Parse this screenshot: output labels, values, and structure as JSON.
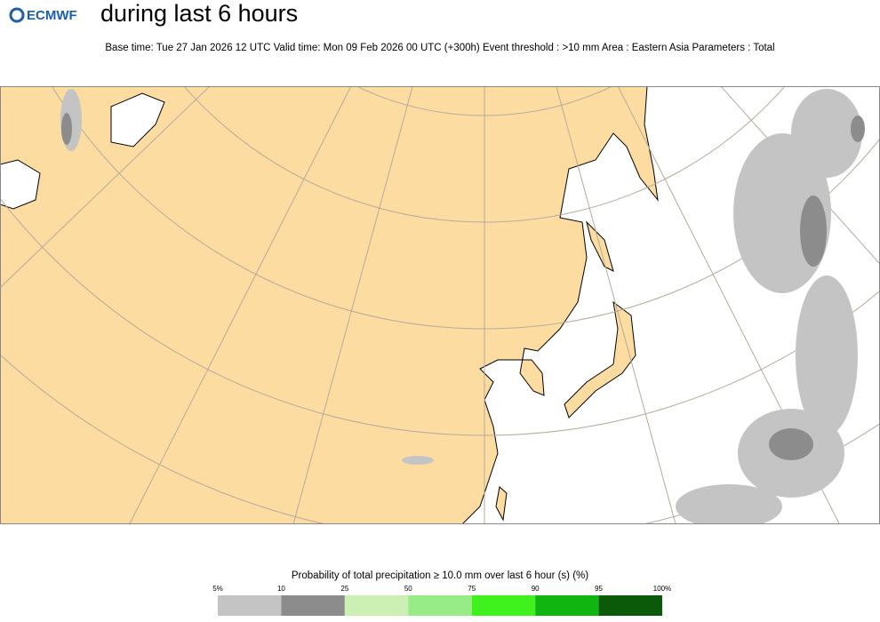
{
  "logo": "ECMWF",
  "title": "during last 6 hours",
  "subtitle": "Base time: Tue 27 Jan 2026 12 UTC Valid time: Mon 09 Feb 2026 00 UTC (+300h) Event threshold : >10 mm Area : Eastern Asia Parameters : Total",
  "legend": {
    "title": "Probability of total precipitation ≥ 10.0 mm over last 6 hour (s) (%)",
    "ticks": [
      "5%",
      "10",
      "25",
      "50",
      "75",
      "90",
      "95",
      "100%"
    ],
    "colors": [
      "#c4c4c4",
      "#8c8c8c",
      "#ccf0b4",
      "#98ec88",
      "#3ff21e",
      "#10b510",
      "#0a5a0a"
    ]
  }
}
